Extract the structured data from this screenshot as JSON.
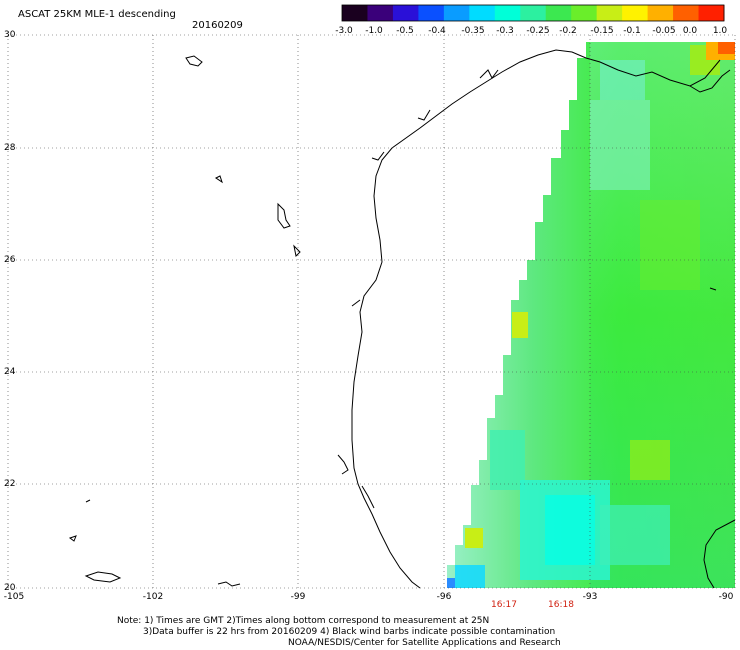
{
  "title": "ASCAT 25KM MLE-1 descending",
  "date": "20160209",
  "colorbar": {
    "labels": [
      "-3.0",
      "-1.0",
      "-0.5",
      "-0.4",
      "-0.35",
      "-0.3",
      "-0.25",
      "-0.2",
      "-0.15",
      "-0.1",
      "-0.05",
      "0.0",
      "1.0"
    ],
    "colors": [
      "#1a001f",
      "#3a007a",
      "#2a10d8",
      "#0a50ff",
      "#0a9cff",
      "#00dcff",
      "#00ffd8",
      "#2cf0a0",
      "#3ce850",
      "#6aee2a",
      "#c8ee16",
      "#fff200",
      "#ffb000",
      "#ff6000",
      "#ff2000"
    ]
  },
  "axes": {
    "lat_labels": [
      "30",
      "28",
      "26",
      "24",
      "22",
      "20"
    ],
    "lon_labels": [
      "-105",
      "-102",
      "-99",
      "-96",
      "-93",
      "-90"
    ]
  },
  "times": [
    "16:17",
    "16:18"
  ],
  "notes": {
    "line1": "Note: 1) Times are GMT 2)Times along bottom correspond to measurement at 25N",
    "line2": "3)Data buffer is 22 hrs from 20160209 4) Black wind barbs indicate possible contamination",
    "line3": "NOAA/NESDIS/Center for Satellite Applications and Research"
  }
}
